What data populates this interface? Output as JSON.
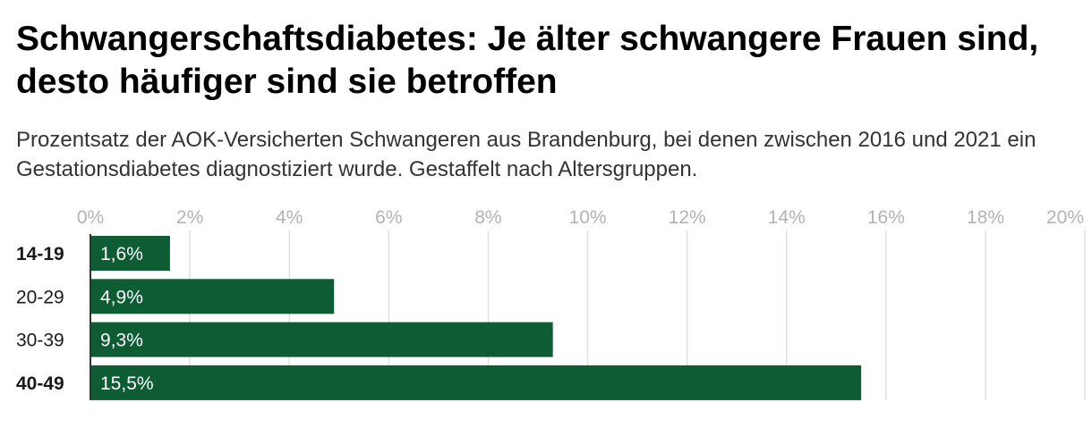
{
  "header": {
    "title": "Schwangerschaftsdiabetes: Je älter schwangere Frauen sind, desto häufiger sind sie betroffen",
    "subtitle": "Prozentsatz der AOK-Versicherten Schwangeren aus Brandenburg, bei denen zwischen 2016 und 2021 ein Gestationsdiabetes diagnostiziert wurde. Gestaffelt nach Altersgruppen."
  },
  "colors": {
    "bar": "#0d5c34",
    "grid": "#e0e0e0",
    "axis": "#333333"
  },
  "chart_data": {
    "type": "bar",
    "orientation": "horizontal",
    "title": "Schwangerschaftsdiabetes: Je älter schwangere Frauen sind, desto häufiger sind sie betroffen",
    "xlabel": "",
    "ylabel": "",
    "categories": [
      "14-19",
      "20-29",
      "30-39",
      "40-49"
    ],
    "bold_categories": [
      "14-19",
      "40-49"
    ],
    "values": [
      1.6,
      4.9,
      9.3,
      15.5
    ],
    "value_labels": [
      "1,6%",
      "4,9%",
      "9,3%",
      "15,5%"
    ],
    "xlim": [
      0,
      20
    ],
    "xticks": [
      0,
      2,
      4,
      6,
      8,
      10,
      12,
      14,
      16,
      18,
      20
    ],
    "xtick_labels": [
      "0%",
      "2%",
      "4%",
      "6%",
      "8%",
      "10%",
      "12%",
      "14%",
      "16%",
      "18%",
      "20%"
    ],
    "grid": true,
    "legend": "none"
  }
}
